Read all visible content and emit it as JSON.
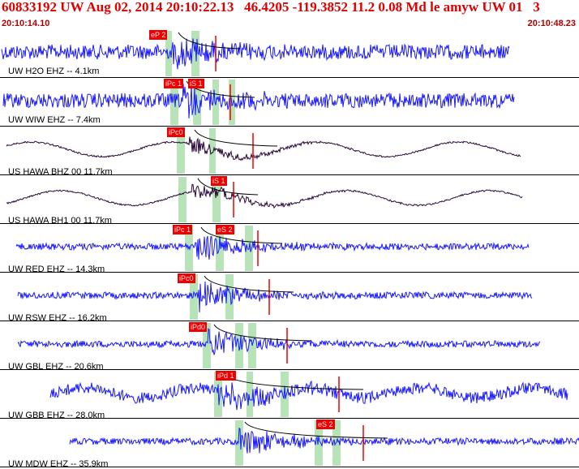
{
  "header": {
    "title": "60833192 UW Aug 02, 2014 20:10:22.13   46.4205 -119.3852 11.2 0.08 Md le amyw UW 01   3",
    "time_start": "20:10:14.10",
    "time_end": "20:10:48.23"
  },
  "colors": {
    "title": "#e00000",
    "trace_blue": "#1a1aff",
    "trace_dark": "#2a0a3a",
    "pick_red": "#ee0000",
    "window_green": "#b8e2b8"
  },
  "traces": [
    {
      "label": "UW H2O EHZ -- 4.1km",
      "color": "blue",
      "picks": [
        "eP 2"
      ]
    },
    {
      "label": "UW WIW EHZ -- 7.4km",
      "color": "blue",
      "picks": [
        "iPc 1",
        "iS 1"
      ]
    },
    {
      "label": "US HAWA BHZ 00 11.7km",
      "color": "dark",
      "picks": [
        "iPc0"
      ]
    },
    {
      "label": "US HAWA BH1 00 11.7km",
      "color": "dark",
      "picks": [
        "iS 1"
      ]
    },
    {
      "label": "UW RED EHZ -- 14.3km",
      "color": "blue",
      "picks": [
        "iPc 1",
        "eS 2"
      ]
    },
    {
      "label": "UW RSW EHZ -- 16.2km",
      "color": "blue",
      "picks": [
        "iPc0"
      ]
    },
    {
      "label": "UW GBL EHZ -- 20.6km",
      "color": "blue",
      "picks": [
        "iPd0"
      ]
    },
    {
      "label": "UW GBB EHZ -- 28.0km",
      "color": "blue",
      "picks": [
        "iPd 1"
      ]
    },
    {
      "label": "UW MDW EHZ -- 35.9km",
      "color": "blue",
      "picks": [
        "eS 2"
      ]
    }
  ]
}
